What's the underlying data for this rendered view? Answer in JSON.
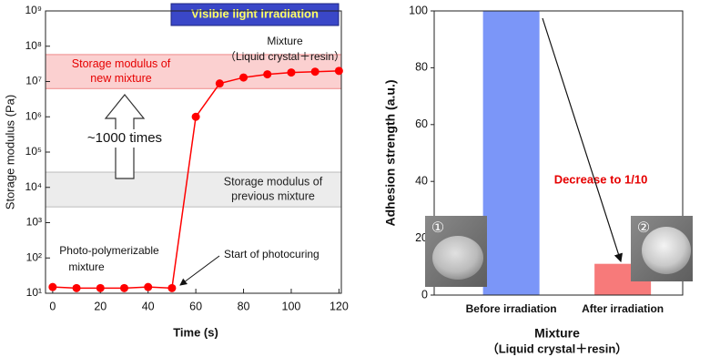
{
  "chart_data": [
    {
      "type": "line",
      "y_label": "Storage modulus (Pa)",
      "x_label": "Time (s)",
      "log_y": true,
      "x": [
        0,
        10,
        20,
        30,
        40,
        50,
        60,
        70,
        80,
        90,
        100,
        110,
        120
      ],
      "values": [
        15,
        14,
        14,
        14,
        15,
        14,
        1000000,
        8800000,
        13000000,
        16000000,
        18000000,
        19000000,
        20000000
      ],
      "color": "#ff0000",
      "xlim": [
        -3,
        121
      ],
      "xticks": [
        0,
        20,
        40,
        60,
        80,
        100,
        120
      ],
      "ylim": [
        10,
        1000000000
      ],
      "yticks": [
        {
          "value": 10,
          "label": "10¹"
        },
        {
          "value": 100,
          "label": "10²"
        },
        {
          "value": 1000,
          "label": "10³"
        },
        {
          "value": 10000,
          "label": "10⁴"
        },
        {
          "value": 100000,
          "label": "10⁵"
        },
        {
          "value": 1000000,
          "label": "10⁶"
        },
        {
          "value": 10000000,
          "label": "10⁷"
        },
        {
          "value": 100000000,
          "label": "10⁸"
        },
        {
          "value": 1000000000,
          "label": "10⁹"
        }
      ],
      "bands": [
        {
          "range": [
            6300000,
            58000000
          ],
          "label": [
            "Storage modulus of",
            "new mixture"
          ],
          "color": "#e60000",
          "fill": "#fbd0d0",
          "stroke": "#f08a8a"
        },
        {
          "range": [
            2800,
            27000
          ],
          "label": [
            "Storage modulus of",
            "previous mixture"
          ],
          "color": "#222222",
          "fill": "#ececec",
          "stroke": "#bbbbbb"
        }
      ],
      "annotations": {
        "irradiation": "Visible light irradiation",
        "mixture": [
          "Mixture",
          "（Liquid crystal＋resin）"
        ],
        "increase": "~1000 times",
        "initial": [
          "Photo-polymerizable",
          "mixture"
        ],
        "start": "Start of  photocuring"
      }
    },
    {
      "type": "bar",
      "y_label": "Adhesion strength (a.u.)",
      "x_label": [
        "Mixture",
        "（Liquid crystal＋resin）"
      ],
      "categories": [
        "Before irradiation",
        "After irradiation"
      ],
      "values": [
        100,
        11
      ],
      "colors": [
        "#7b96f8",
        "#f77a7a"
      ],
      "ylim": [
        0,
        100
      ],
      "yticks": [
        0,
        20,
        40,
        60,
        80,
        100
      ],
      "annotation": "Decrease to 1/10",
      "photo_labels": [
        "①",
        "②"
      ]
    }
  ]
}
